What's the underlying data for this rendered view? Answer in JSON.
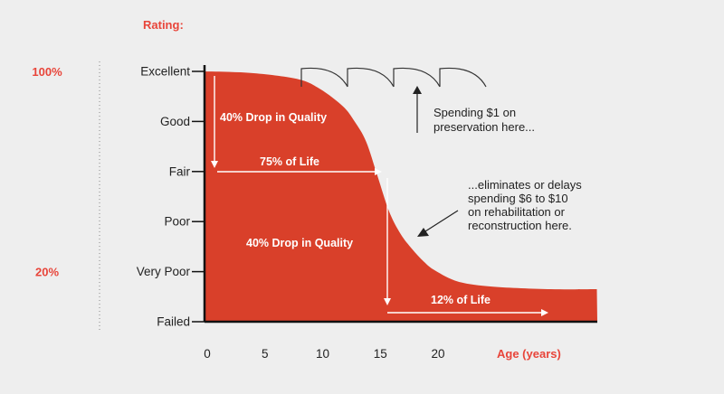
{
  "colors": {
    "curve": "#d9402a",
    "accent": "#e8453a",
    "text": "#222222",
    "axis": "#111111",
    "inner": "#ffffff",
    "background": "#eeeeee"
  },
  "chart_data": {
    "type": "area",
    "title": "",
    "ylabel": "Rating:",
    "xlabel": "Age (years)",
    "x_ticks": [
      0,
      5,
      10,
      15,
      20
    ],
    "xlim": [
      0,
      34
    ],
    "y_categories": [
      "Failed",
      "Very Poor",
      "Poor",
      "Fair",
      "Good",
      "Excellent"
    ],
    "pct_markers": [
      {
        "text": "100%",
        "level": 5
      },
      {
        "text": "20%",
        "level": 1
      }
    ],
    "x": [
      0,
      4,
      8,
      10,
      12,
      13,
      14,
      15,
      16,
      17,
      18,
      19,
      20,
      22,
      25,
      30,
      34
    ],
    "values": [
      5,
      4.97,
      4.85,
      4.65,
      4.3,
      4.0,
      3.6,
      2.9,
      2.2,
      1.75,
      1.45,
      1.2,
      1.02,
      0.8,
      0.7,
      0.65,
      0.65
    ],
    "annotations": {
      "drop1": "40% Drop in Quality",
      "life75": "75% of Life",
      "drop2": "40% Drop in Quality",
      "life12": "12% of Life",
      "spending": [
        "Spending $1 on",
        "preservation here..."
      ],
      "eliminates": [
        "...eliminates or delays",
        "spending $6 to $10",
        "on rehabilitation or",
        "reconstruction here."
      ]
    }
  }
}
